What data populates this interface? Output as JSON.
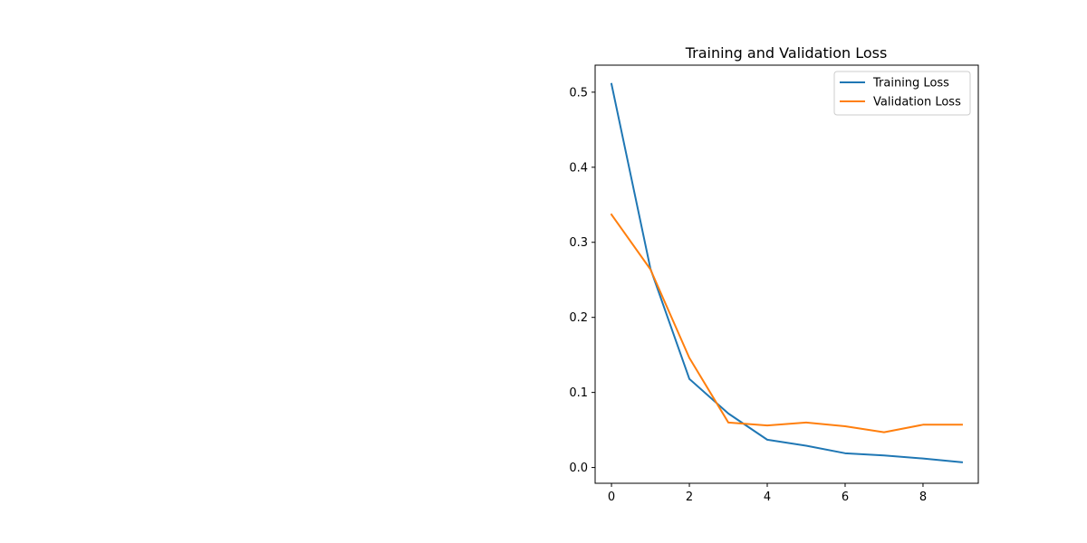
{
  "chart_data": {
    "type": "line",
    "title": "Training and Validation Loss",
    "xlabel": "",
    "ylabel": "",
    "x": [
      0,
      1,
      2,
      3,
      4,
      5,
      6,
      7,
      8,
      9
    ],
    "xlim": [
      -0.42,
      9.42
    ],
    "ylim": [
      -0.021,
      0.536
    ],
    "xticks": [
      0,
      2,
      4,
      6,
      8
    ],
    "xtick_labels": [
      "0",
      "2",
      "4",
      "6",
      "8"
    ],
    "yticks": [
      0.0,
      0.1,
      0.2,
      0.3,
      0.4,
      0.5
    ],
    "ytick_labels": [
      "0.0",
      "0.1",
      "0.2",
      "0.3",
      "0.4",
      "0.5"
    ],
    "grid": false,
    "legend_position": "top-right",
    "series": [
      {
        "name": "Training Loss",
        "color": "#1f77b4",
        "values": [
          0.511,
          0.265,
          0.118,
          0.072,
          0.037,
          0.029,
          0.019,
          0.016,
          0.012,
          0.007
        ]
      },
      {
        "name": "Validation Loss",
        "color": "#ff7f0e",
        "values": [
          0.337,
          0.264,
          0.146,
          0.06,
          0.056,
          0.06,
          0.055,
          0.047,
          0.057,
          0.057
        ]
      }
    ]
  }
}
